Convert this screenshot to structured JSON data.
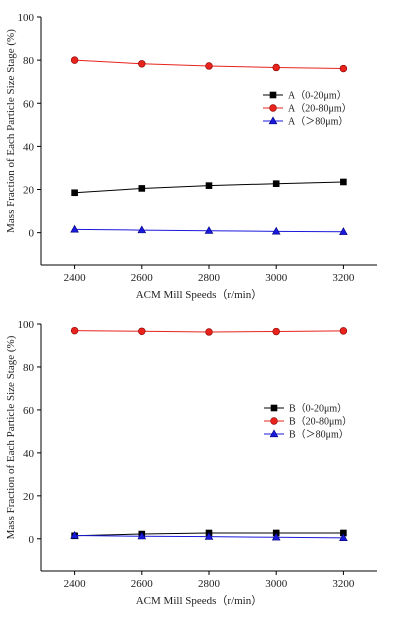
{
  "chart_data": [
    {
      "type": "line",
      "title": "",
      "xlabel": "ACM Mill Speeds（r/min）",
      "ylabel": "Mass Fraction of Each Particle Size Stage (%)",
      "x": [
        2400,
        2600,
        2800,
        3000,
        3200
      ],
      "xlim": [
        2300,
        3300
      ],
      "ylim": [
        -15,
        100
      ],
      "yticks": [
        0,
        20,
        40,
        60,
        80,
        100
      ],
      "grid": false,
      "legend_position": "right",
      "series": [
        {
          "name": "A（0-20μm）",
          "color": "#000000",
          "marker": "square",
          "values": [
            18.5,
            20.5,
            21.8,
            22.7,
            23.5
          ]
        },
        {
          "name": "A（20-80μm）",
          "color": "#e8231b",
          "marker": "circle",
          "values": [
            80.0,
            78.3,
            77.3,
            76.6,
            76.1
          ]
        },
        {
          "name": "A（＞80μm）",
          "color": "#1a1adc",
          "marker": "triangle",
          "values": [
            1.5,
            1.2,
            0.9,
            0.6,
            0.4
          ]
        }
      ]
    },
    {
      "type": "line",
      "title": "",
      "xlabel": "ACM Mill Speeds（r/min）",
      "ylabel": "Mass Fraction of Each Particle Size Stage (%)",
      "x": [
        2400,
        2600,
        2800,
        3000,
        3200
      ],
      "xlim": [
        2300,
        3300
      ],
      "ylim": [
        -15,
        100
      ],
      "yticks": [
        0,
        20,
        40,
        60,
        80,
        100
      ],
      "grid": false,
      "legend_position": "right",
      "series": [
        {
          "name": "B（0-20μm）",
          "color": "#000000",
          "marker": "square",
          "values": [
            1.4,
            2.2,
            2.7,
            2.7,
            2.7
          ]
        },
        {
          "name": "B（20-80μm）",
          "color": "#e8231b",
          "marker": "circle",
          "values": [
            96.9,
            96.6,
            96.3,
            96.5,
            96.8
          ]
        },
        {
          "name": "B（＞80μm）",
          "color": "#1a1adc",
          "marker": "triangle",
          "values": [
            1.5,
            1.2,
            1.0,
            0.7,
            0.4
          ]
        }
      ]
    }
  ]
}
